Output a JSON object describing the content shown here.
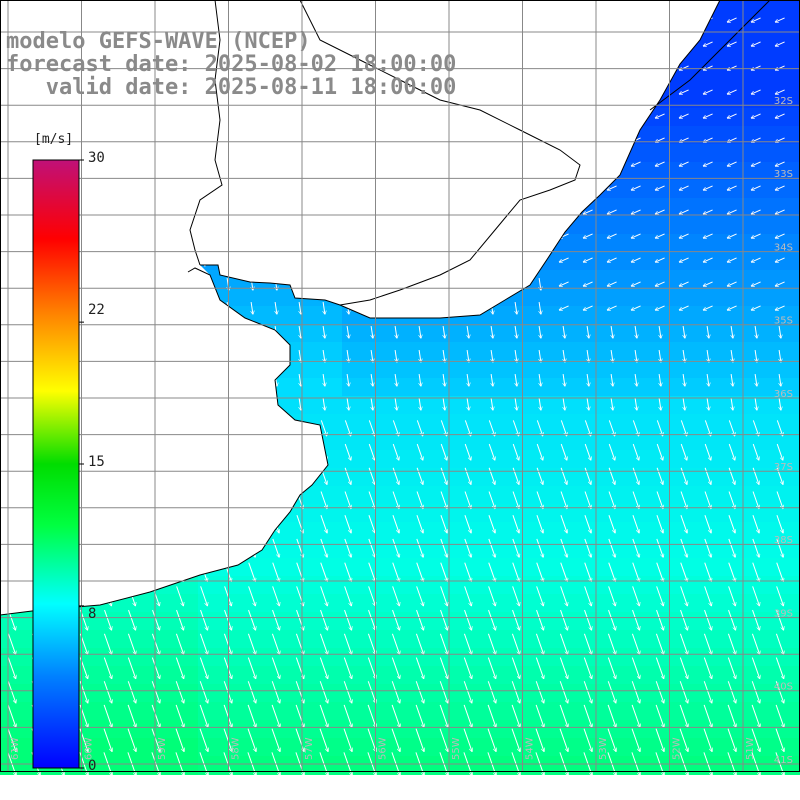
{
  "header": {
    "model_line": "modelo GEFS-WAVE (NCEP)",
    "forecast_line": "forecast date: 2025-08-02 18:00:00",
    "valid_line": "   valid date: 2025-08-11 18:00:00"
  },
  "colorbar": {
    "unit": "[m/s]",
    "ticks": [
      {
        "value": 30,
        "label": "30"
      },
      {
        "value": 22,
        "label": "22"
      },
      {
        "value": 15,
        "label": "15"
      },
      {
        "value": 8,
        "label": "8"
      },
      {
        "value": 0,
        "label": "0"
      }
    ],
    "range": [
      0,
      30
    ]
  },
  "map": {
    "lat_labels": [
      "32S",
      "33S",
      "34S",
      "35S",
      "36S",
      "37S",
      "38S",
      "39S",
      "40S",
      "41S"
    ],
    "lon_labels": [
      "61W",
      "60W",
      "59W",
      "58W",
      "57W",
      "56W",
      "55W",
      "54W",
      "53W",
      "52W",
      "51W"
    ],
    "field": "wind speed",
    "colors": {
      "low": "#0000ff",
      "mid": "#00ffff",
      "high": "#00ff60",
      "land": "#ffffff",
      "coast": "#000000",
      "grid": "#888888",
      "arrow": "#ffffff"
    }
  }
}
